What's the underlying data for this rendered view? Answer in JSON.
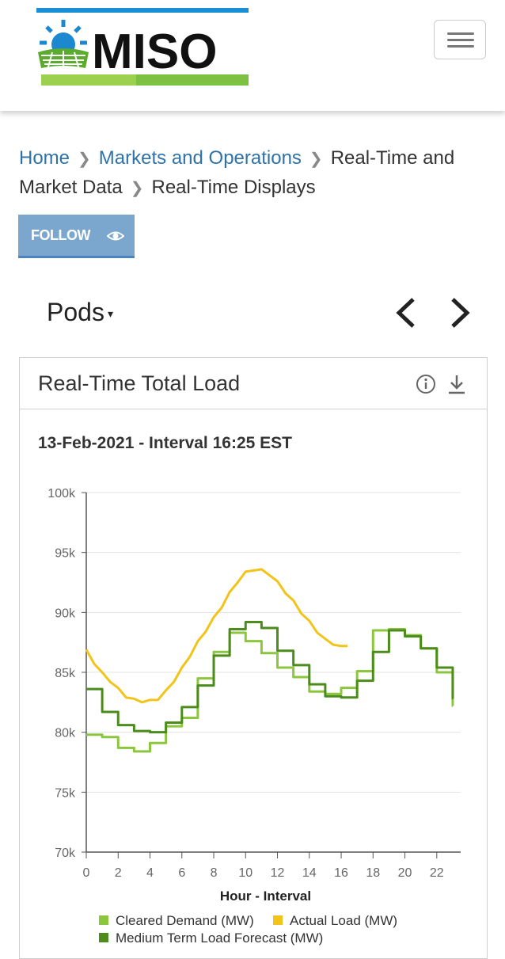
{
  "header": {
    "logo_text": "MISO",
    "menu_icon": "hamburger-icon"
  },
  "breadcrumb": [
    {
      "label": "Home",
      "link": true
    },
    {
      "label": "Markets and Operations",
      "link": true
    },
    {
      "label": "Real-Time and Market Data",
      "link": false
    },
    {
      "label": "Real-Time Displays",
      "link": false
    }
  ],
  "follow": {
    "label": "FOLLOW",
    "icon": "eye-icon"
  },
  "pods": {
    "label": "Pods",
    "caret": "▾"
  },
  "card": {
    "title": "Real-Time Total Load",
    "subtitle": "13-Feb-2021 - Interval 16:25 EST"
  },
  "colors": {
    "cleared": "#8cc63f",
    "actual": "#f2c41a",
    "forecast": "#4c8c1c",
    "link": "#2e72a8",
    "follow_bg": "#7ba7cf"
  },
  "chart_data": {
    "type": "line",
    "xlabel": "Hour - Interval",
    "ylabel": "",
    "xlim": [
      0,
      23.5
    ],
    "ylim": [
      70000,
      100000
    ],
    "x_ticks": [
      0,
      2,
      4,
      6,
      8,
      10,
      12,
      14,
      16,
      18,
      20,
      22
    ],
    "x_tick_labels": [
      "0",
      "2",
      "4",
      "6",
      "8",
      "10",
      "12",
      "14",
      "16",
      "18",
      "20",
      "22"
    ],
    "y_ticks": [
      70000,
      75000,
      80000,
      85000,
      90000,
      95000,
      100000
    ],
    "y_tick_labels": [
      "70k",
      "75k",
      "80k",
      "85k",
      "90k",
      "95k",
      "100k"
    ],
    "grid": "horizontal",
    "legend": "bottom",
    "series": [
      {
        "name": "Cleared Demand (MW)",
        "kind": "step",
        "color": "#8cc63f",
        "x": [
          0,
          1,
          2,
          3,
          4,
          5,
          6,
          7,
          8,
          9,
          10,
          11,
          12,
          13,
          14,
          15,
          16,
          17,
          18,
          19,
          20,
          21,
          22,
          23
        ],
        "values": [
          79800,
          79600,
          78700,
          78400,
          79100,
          80500,
          81200,
          84500,
          86700,
          88300,
          87600,
          86600,
          85400,
          84600,
          83400,
          83200,
          83700,
          85100,
          88500,
          88600,
          88100,
          87000,
          85000,
          82200
        ]
      },
      {
        "name": "Medium Term Load Forecast (MW)",
        "kind": "step",
        "color": "#4c8c1c",
        "x": [
          0,
          1,
          2,
          3,
          4,
          5,
          6,
          7,
          8,
          9,
          10,
          11,
          12,
          13,
          14,
          15,
          16,
          17,
          18,
          19,
          20,
          21,
          22,
          23
        ],
        "values": [
          83600,
          81700,
          80600,
          80100,
          80000,
          80800,
          82100,
          83900,
          86400,
          88600,
          89200,
          88700,
          86800,
          85600,
          84000,
          83000,
          82900,
          84300,
          86700,
          88500,
          88000,
          87000,
          85400,
          82800
        ]
      },
      {
        "name": "Actual Load (MW)",
        "kind": "line",
        "color": "#f2c41a",
        "x": [
          0,
          0.5,
          1,
          1.5,
          2,
          2.5,
          3,
          3.5,
          4,
          4.5,
          5,
          5.5,
          6,
          6.5,
          7,
          7.5,
          8,
          8.5,
          9,
          9.5,
          10,
          10.5,
          11,
          11.5,
          12,
          12.5,
          13,
          13.5,
          14,
          14.5,
          15,
          15.5,
          16,
          16.4
        ],
        "values": [
          86800,
          85800,
          84900,
          84300,
          83600,
          83000,
          82700,
          82600,
          82600,
          82800,
          83400,
          84300,
          85300,
          86400,
          87500,
          88500,
          89500,
          90500,
          91600,
          92600,
          93300,
          93600,
          93500,
          93200,
          92500,
          91700,
          90900,
          90000,
          89200,
          88400,
          87700,
          87400,
          87100,
          87300
        ]
      }
    ]
  }
}
